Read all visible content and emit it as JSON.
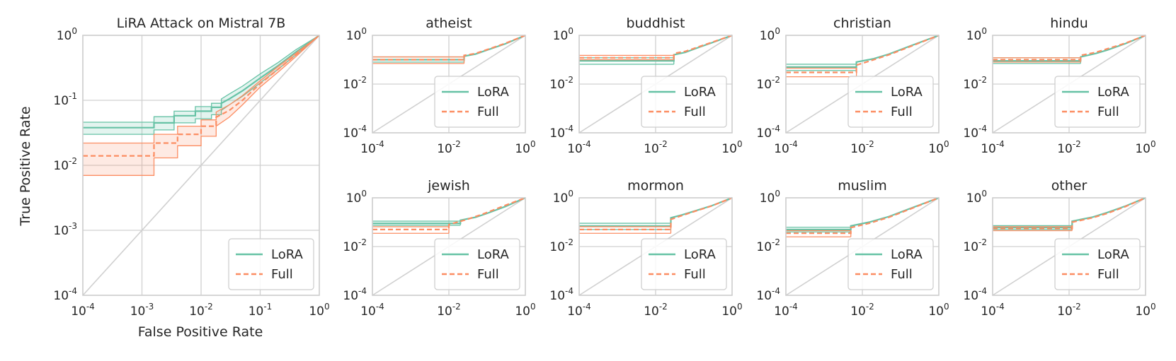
{
  "figure": {
    "xlabel": "False Positive Rate",
    "ylabel": "True Positive Rate"
  },
  "colors": {
    "lora": "#66c2a5",
    "full": "#fc8d62",
    "grid": "#d0d0d0",
    "frame": "#cfcfcf",
    "text": "#262626"
  },
  "legend": {
    "lora_label": "LoRA",
    "full_label": "Full"
  },
  "chart_data": [
    {
      "type": "line",
      "id": "main",
      "title": "LiRA Attack on Mistral 7B",
      "xscale": "log",
      "yscale": "log",
      "xlim": [
        0.0001,
        1
      ],
      "ylim": [
        0.0001,
        1
      ],
      "xticks": [
        "-4",
        "-3",
        "-2",
        "-1",
        "0"
      ],
      "yticks": [
        "-4",
        "-3",
        "-2",
        "-1",
        "0"
      ],
      "xlabel": "False Positive Rate",
      "ylabel": "True Positive Rate",
      "legend_position": "lower-right",
      "series": [
        {
          "name": "LoRA",
          "style": "solid",
          "x": [
            0.0001,
            0.0016,
            0.0016,
            0.0035,
            0.0035,
            0.008,
            0.008,
            0.015,
            0.015,
            0.022,
            0.022,
            0.03,
            0.05,
            0.1,
            0.2,
            0.4,
            1.0
          ],
          "y": [
            0.038,
            0.038,
            0.045,
            0.045,
            0.058,
            0.058,
            0.068,
            0.068,
            0.078,
            0.078,
            0.09,
            0.105,
            0.14,
            0.22,
            0.34,
            0.55,
            1.0
          ],
          "lo": [
            0.03,
            0.03,
            0.035,
            0.035,
            0.045,
            0.045,
            0.052,
            0.052,
            0.06,
            0.06,
            0.07,
            0.085,
            0.115,
            0.185,
            0.3,
            0.5,
            1.0
          ],
          "hi": [
            0.046,
            0.046,
            0.056,
            0.056,
            0.068,
            0.068,
            0.08,
            0.08,
            0.09,
            0.09,
            0.105,
            0.125,
            0.165,
            0.255,
            0.38,
            0.6,
            1.0
          ]
        },
        {
          "name": "Full",
          "style": "dashed",
          "x": [
            0.0001,
            0.0016,
            0.0016,
            0.004,
            0.004,
            0.01,
            0.01,
            0.018,
            0.018,
            0.03,
            0.05,
            0.1,
            0.2,
            0.4,
            1.0
          ],
          "y": [
            0.014,
            0.014,
            0.022,
            0.022,
            0.03,
            0.03,
            0.04,
            0.04,
            0.055,
            0.07,
            0.1,
            0.18,
            0.3,
            0.5,
            1.0
          ],
          "lo": [
            0.007,
            0.007,
            0.013,
            0.013,
            0.02,
            0.02,
            0.028,
            0.028,
            0.04,
            0.055,
            0.085,
            0.16,
            0.27,
            0.47,
            1.0
          ],
          "hi": [
            0.022,
            0.022,
            0.03,
            0.03,
            0.04,
            0.04,
            0.05,
            0.05,
            0.066,
            0.085,
            0.118,
            0.2,
            0.33,
            0.53,
            1.0
          ]
        }
      ]
    },
    {
      "type": "line",
      "id": "atheist",
      "title": "atheist",
      "xscale": "log",
      "yscale": "log",
      "xlim": [
        0.0001,
        1
      ],
      "ylim": [
        0.0001,
        1
      ],
      "xticks": [
        "-4",
        "-2",
        "0"
      ],
      "yticks": [
        "-4",
        "-2",
        "0"
      ],
      "legend_position": "lower-right",
      "series": [
        {
          "name": "LoRA",
          "style": "solid",
          "x": [
            0.0001,
            0.025,
            0.025,
            0.05,
            0.1,
            0.3,
            1.0
          ],
          "y": [
            0.1,
            0.1,
            0.14,
            0.17,
            0.25,
            0.45,
            1.0
          ],
          "band": [
            0.08,
            0.13
          ]
        },
        {
          "name": "Full",
          "style": "dashed",
          "x": [
            0.0001,
            0.025,
            0.025,
            0.05,
            0.1,
            0.3,
            1.0
          ],
          "y": [
            0.1,
            0.1,
            0.15,
            0.18,
            0.26,
            0.47,
            1.0
          ],
          "band": [
            0.07,
            0.13
          ]
        }
      ]
    },
    {
      "type": "line",
      "id": "buddhist",
      "title": "buddhist",
      "xscale": "log",
      "yscale": "log",
      "xlim": [
        0.0001,
        1
      ],
      "ylim": [
        0.0001,
        1
      ],
      "xticks": [
        "-4",
        "-2",
        "0"
      ],
      "yticks": [
        "-4",
        "-2",
        "0"
      ],
      "legend_position": "lower-right",
      "series": [
        {
          "name": "LoRA",
          "style": "solid",
          "x": [
            0.0001,
            0.03,
            0.03,
            0.06,
            0.12,
            0.3,
            1.0
          ],
          "y": [
            0.09,
            0.09,
            0.16,
            0.2,
            0.3,
            0.5,
            1.0
          ],
          "band": [
            0.065,
            0.12
          ]
        },
        {
          "name": "Full",
          "style": "dashed",
          "x": [
            0.0001,
            0.03,
            0.03,
            0.06,
            0.12,
            0.3,
            1.0
          ],
          "y": [
            0.12,
            0.12,
            0.18,
            0.22,
            0.32,
            0.52,
            1.0
          ],
          "band": [
            0.1,
            0.15
          ]
        }
      ]
    },
    {
      "type": "line",
      "id": "christian",
      "title": "christian",
      "xscale": "log",
      "yscale": "log",
      "xlim": [
        0.0001,
        1
      ],
      "ylim": [
        0.0001,
        1
      ],
      "xticks": [
        "-4",
        "-2",
        "0"
      ],
      "yticks": [
        "-4",
        "-2",
        "0"
      ],
      "legend_position": "lower-right",
      "series": [
        {
          "name": "LoRA",
          "style": "solid",
          "x": [
            0.0001,
            0.007,
            0.007,
            0.02,
            0.05,
            0.15,
            1.0
          ],
          "y": [
            0.05,
            0.05,
            0.08,
            0.11,
            0.17,
            0.33,
            1.0
          ],
          "band": [
            0.036,
            0.065
          ]
        },
        {
          "name": "Full",
          "style": "dashed",
          "x": [
            0.0001,
            0.007,
            0.007,
            0.02,
            0.05,
            0.15,
            1.0
          ],
          "y": [
            0.03,
            0.03,
            0.06,
            0.1,
            0.16,
            0.31,
            1.0
          ],
          "band": [
            0.02,
            0.045
          ]
        }
      ]
    },
    {
      "type": "line",
      "id": "hindu",
      "title": "hindu",
      "xscale": "log",
      "yscale": "log",
      "xlim": [
        0.0001,
        1
      ],
      "ylim": [
        0.0001,
        1
      ],
      "xticks": [
        "-4",
        "-2",
        "0"
      ],
      "yticks": [
        "-4",
        "-2",
        "0"
      ],
      "legend_position": "lower-right",
      "series": [
        {
          "name": "LoRA",
          "style": "solid",
          "x": [
            0.0001,
            0.02,
            0.02,
            0.05,
            0.1,
            0.3,
            1.0
          ],
          "y": [
            0.09,
            0.09,
            0.13,
            0.18,
            0.25,
            0.46,
            1.0
          ],
          "band": [
            0.07,
            0.12
          ]
        },
        {
          "name": "Full",
          "style": "dashed",
          "x": [
            0.0001,
            0.02,
            0.02,
            0.05,
            0.1,
            0.3,
            1.0
          ],
          "y": [
            0.1,
            0.1,
            0.15,
            0.2,
            0.28,
            0.48,
            1.0
          ],
          "band": [
            0.08,
            0.12
          ]
        }
      ]
    },
    {
      "type": "line",
      "id": "jewish",
      "title": "jewish",
      "xscale": "log",
      "yscale": "log",
      "xlim": [
        0.0001,
        1
      ],
      "ylim": [
        0.0001,
        1
      ],
      "xticks": [
        "-4",
        "-2",
        "0"
      ],
      "yticks": [
        "-4",
        "-2",
        "0"
      ],
      "legend_position": "lower-right",
      "series": [
        {
          "name": "LoRA",
          "style": "solid",
          "x": [
            0.0001,
            0.02,
            0.02,
            0.05,
            0.1,
            0.3,
            1.0
          ],
          "y": [
            0.09,
            0.09,
            0.12,
            0.16,
            0.23,
            0.44,
            1.0
          ],
          "band": [
            0.075,
            0.11
          ]
        },
        {
          "name": "Full",
          "style": "dashed",
          "x": [
            0.0001,
            0.01,
            0.01,
            0.03,
            0.08,
            0.25,
            1.0
          ],
          "y": [
            0.05,
            0.05,
            0.08,
            0.13,
            0.22,
            0.44,
            1.0
          ],
          "band": [
            0.035,
            0.065
          ]
        }
      ]
    },
    {
      "type": "line",
      "id": "mormon",
      "title": "mormon",
      "xscale": "log",
      "yscale": "log",
      "xlim": [
        0.0001,
        1
      ],
      "ylim": [
        0.0001,
        1
      ],
      "xticks": [
        "-4",
        "-2",
        "0"
      ],
      "yticks": [
        "-4",
        "-2",
        "0"
      ],
      "legend_position": "lower-right",
      "series": [
        {
          "name": "LoRA",
          "style": "solid",
          "x": [
            0.0001,
            0.025,
            0.025,
            0.05,
            0.1,
            0.3,
            1.0
          ],
          "y": [
            0.07,
            0.07,
            0.15,
            0.2,
            0.28,
            0.48,
            1.0
          ],
          "band": [
            0.05,
            0.09
          ]
        },
        {
          "name": "Full",
          "style": "dashed",
          "x": [
            0.0001,
            0.025,
            0.025,
            0.05,
            0.1,
            0.3,
            1.0
          ],
          "y": [
            0.05,
            0.05,
            0.13,
            0.19,
            0.27,
            0.47,
            1.0
          ],
          "band": [
            0.035,
            0.065
          ]
        }
      ]
    },
    {
      "type": "line",
      "id": "muslim",
      "title": "muslim",
      "xscale": "log",
      "yscale": "log",
      "xlim": [
        0.0001,
        1
      ],
      "ylim": [
        0.0001,
        1
      ],
      "xticks": [
        "-4",
        "-2",
        "0"
      ],
      "yticks": [
        "-4",
        "-2",
        "0"
      ],
      "legend_position": "lower-right",
      "series": [
        {
          "name": "LoRA",
          "style": "solid",
          "x": [
            0.0001,
            0.005,
            0.005,
            0.015,
            0.05,
            0.15,
            1.0
          ],
          "y": [
            0.05,
            0.05,
            0.07,
            0.1,
            0.17,
            0.33,
            1.0
          ],
          "band": [
            0.04,
            0.062
          ]
        },
        {
          "name": "Full",
          "style": "dashed",
          "x": [
            0.0001,
            0.005,
            0.005,
            0.015,
            0.05,
            0.15,
            1.0
          ],
          "y": [
            0.035,
            0.035,
            0.06,
            0.09,
            0.16,
            0.31,
            1.0
          ],
          "band": [
            0.025,
            0.045
          ]
        }
      ]
    },
    {
      "type": "line",
      "id": "other",
      "title": "other",
      "xscale": "log",
      "yscale": "log",
      "xlim": [
        0.0001,
        1
      ],
      "ylim": [
        0.0001,
        1
      ],
      "xticks": [
        "-4",
        "-2",
        "0"
      ],
      "yticks": [
        "-4",
        "-2",
        "0"
      ],
      "legend_position": "lower-right",
      "series": [
        {
          "name": "LoRA",
          "style": "solid",
          "x": [
            0.0001,
            0.012,
            0.012,
            0.04,
            0.1,
            0.3,
            1.0
          ],
          "y": [
            0.06,
            0.06,
            0.11,
            0.16,
            0.25,
            0.46,
            1.0
          ],
          "band": [
            0.05,
            0.072
          ]
        },
        {
          "name": "Full",
          "style": "dashed",
          "x": [
            0.0001,
            0.012,
            0.012,
            0.04,
            0.1,
            0.3,
            1.0
          ],
          "y": [
            0.055,
            0.055,
            0.1,
            0.15,
            0.23,
            0.44,
            1.0
          ],
          "band": [
            0.045,
            0.065
          ]
        }
      ]
    }
  ]
}
